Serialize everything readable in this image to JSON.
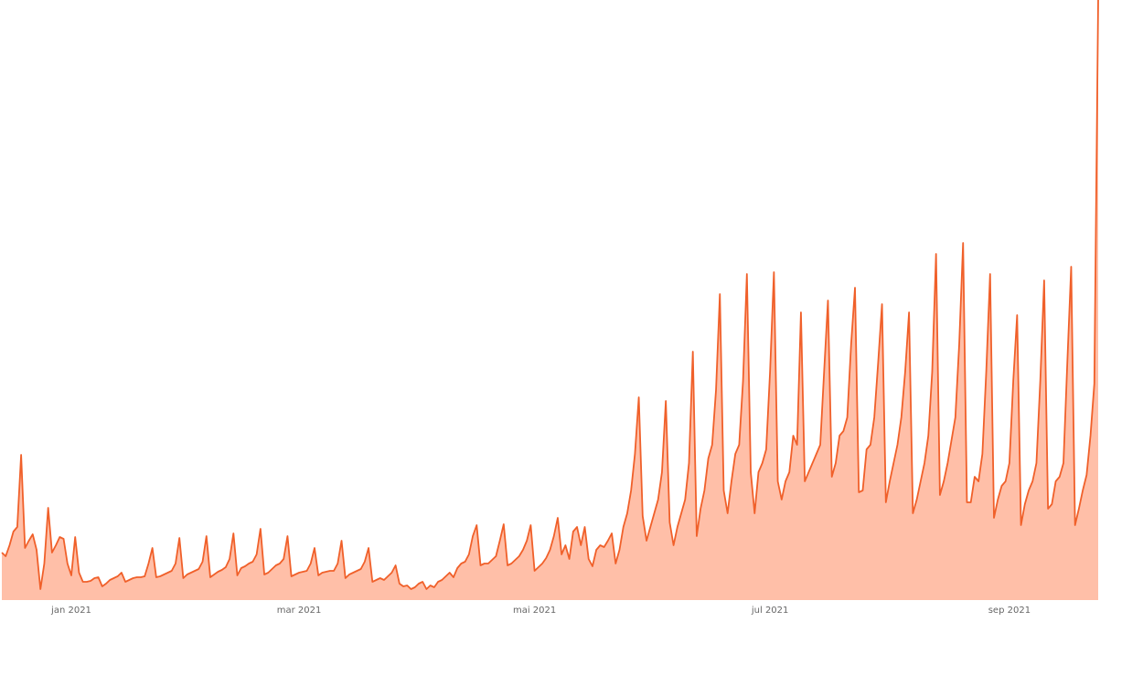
{
  "chart_data": {
    "type": "area",
    "categories": [
      null,
      null,
      null,
      null,
      null,
      null,
      null,
      null,
      null,
      null,
      null,
      null,
      null,
      null,
      null,
      null,
      null,
      null,
      "jan 2021",
      null,
      null,
      null,
      null,
      null,
      null,
      null,
      null,
      null,
      null,
      null,
      null,
      null,
      null,
      null,
      null,
      null,
      null,
      null,
      null,
      null,
      null,
      null,
      null,
      null,
      null,
      null,
      null,
      null,
      null,
      null,
      null,
      null,
      null,
      null,
      null,
      null,
      null,
      null,
      null,
      null,
      null,
      null,
      null,
      null,
      null,
      null,
      null,
      null,
      null,
      null,
      null,
      null,
      null,
      null,
      null,
      null,
      null,
      "mar 2021",
      null,
      null,
      null,
      null,
      null,
      null,
      null,
      null,
      null,
      null,
      null,
      null,
      null,
      null,
      null,
      null,
      null,
      null,
      null,
      null,
      null,
      null,
      null,
      null,
      null,
      null,
      null,
      null,
      null,
      null,
      null,
      null,
      null,
      null,
      null,
      null,
      null,
      null,
      null,
      null,
      null,
      null,
      null,
      null,
      null,
      null,
      null,
      null,
      null,
      null,
      null,
      null,
      null,
      null,
      null,
      null,
      null,
      null,
      null,
      null,
      "mai 2021",
      null,
      null,
      null,
      null,
      null,
      null,
      null,
      null,
      null,
      null,
      null,
      null,
      null,
      null,
      null,
      null,
      null,
      null,
      null,
      null,
      null,
      null,
      null,
      null,
      null,
      null,
      null,
      null,
      null,
      null,
      null,
      null,
      null,
      null,
      null,
      null,
      null,
      null,
      null,
      null,
      null,
      null,
      null,
      null,
      null,
      null,
      null,
      null,
      null,
      null,
      null,
      null,
      null,
      null,
      null,
      null,
      null,
      null,
      null,
      null,
      "jul 2021",
      null,
      null,
      null,
      null,
      null,
      null,
      null,
      null,
      null,
      null,
      null,
      null,
      null,
      null,
      null,
      null,
      null,
      null,
      null,
      null,
      null,
      null,
      null,
      null,
      null,
      null,
      null,
      null,
      null,
      null,
      null,
      null,
      null,
      null,
      null,
      null,
      null,
      null,
      null,
      null,
      null,
      null,
      null,
      null,
      null,
      null,
      null,
      null,
      null,
      null,
      null,
      null,
      null,
      null,
      null,
      null,
      null,
      null,
      null,
      null,
      null,
      "sep 2021",
      null,
      null,
      null,
      null,
      null,
      null,
      null,
      null,
      null,
      null,
      null,
      null,
      null,
      null,
      null,
      null,
      null,
      null,
      null,
      null,
      null,
      null,
      null
    ],
    "series": [
      {
        "color": "#f0602a",
        "fill_color": "#ffbfa8",
        "values": [
          52,
          48,
          60,
          75,
          80,
          159,
          57,
          65,
          72,
          55,
          12,
          40,
          101,
          52,
          60,
          69,
          67,
          40,
          27,
          69,
          30,
          20,
          20,
          21,
          24,
          25,
          15,
          18,
          22,
          24,
          26,
          30,
          20,
          22,
          24,
          25,
          25,
          26,
          40,
          57,
          25,
          26,
          28,
          30,
          32,
          40,
          68,
          24,
          28,
          30,
          32,
          34,
          42,
          70,
          25,
          28,
          31,
          33,
          36,
          45,
          73,
          27,
          35,
          37,
          40,
          42,
          50,
          78,
          28,
          30,
          34,
          38,
          40,
          45,
          70,
          26,
          28,
          30,
          31,
          32,
          40,
          57,
          27,
          30,
          31,
          32,
          32,
          40,
          65,
          24,
          28,
          30,
          32,
          34,
          42,
          57,
          20,
          22,
          24,
          22,
          26,
          30,
          38,
          18,
          15,
          16,
          12,
          14,
          18,
          20,
          12,
          16,
          14,
          20,
          22,
          26,
          30,
          25,
          35,
          40,
          42,
          50,
          70,
          82,
          38,
          40,
          40,
          44,
          48,
          65,
          83,
          38,
          40,
          44,
          48,
          55,
          65,
          82,
          32,
          36,
          40,
          46,
          55,
          70,
          90,
          50,
          60,
          45,
          75,
          80,
          60,
          80,
          45,
          37,
          55,
          60,
          58,
          65,
          73,
          40,
          55,
          80,
          95,
          120,
          160,
          222,
          92,
          65,
          80,
          95,
          110,
          140,
          218,
          85,
          60,
          80,
          95,
          110,
          150,
          272,
          70,
          100,
          120,
          155,
          170,
          230,
          335,
          120,
          95,
          130,
          160,
          170,
          240,
          357,
          140,
          95,
          140,
          150,
          165,
          250,
          359,
          130,
          110,
          130,
          140,
          180,
          170,
          315,
          130,
          140,
          150,
          160,
          170,
          250,
          328,
          135,
          150,
          180,
          185,
          200,
          280,
          342,
          118,
          120,
          165,
          170,
          200,
          260,
          324,
          107,
          130,
          150,
          170,
          200,
          250,
          315,
          95,
          110,
          130,
          150,
          180,
          250,
          379,
          115,
          130,
          150,
          175,
          200,
          280,
          391,
          107,
          107,
          135,
          130,
          160,
          250,
          357,
          90,
          110,
          125,
          130,
          150,
          240,
          312,
          82,
          105,
          120,
          130,
          150,
          240,
          350,
          100,
          105,
          130,
          135,
          150,
          260,
          365,
          82,
          100,
          120,
          137,
          180,
          237,
          657
        ]
      }
    ],
    "ylim": [
      0,
      657
    ]
  }
}
